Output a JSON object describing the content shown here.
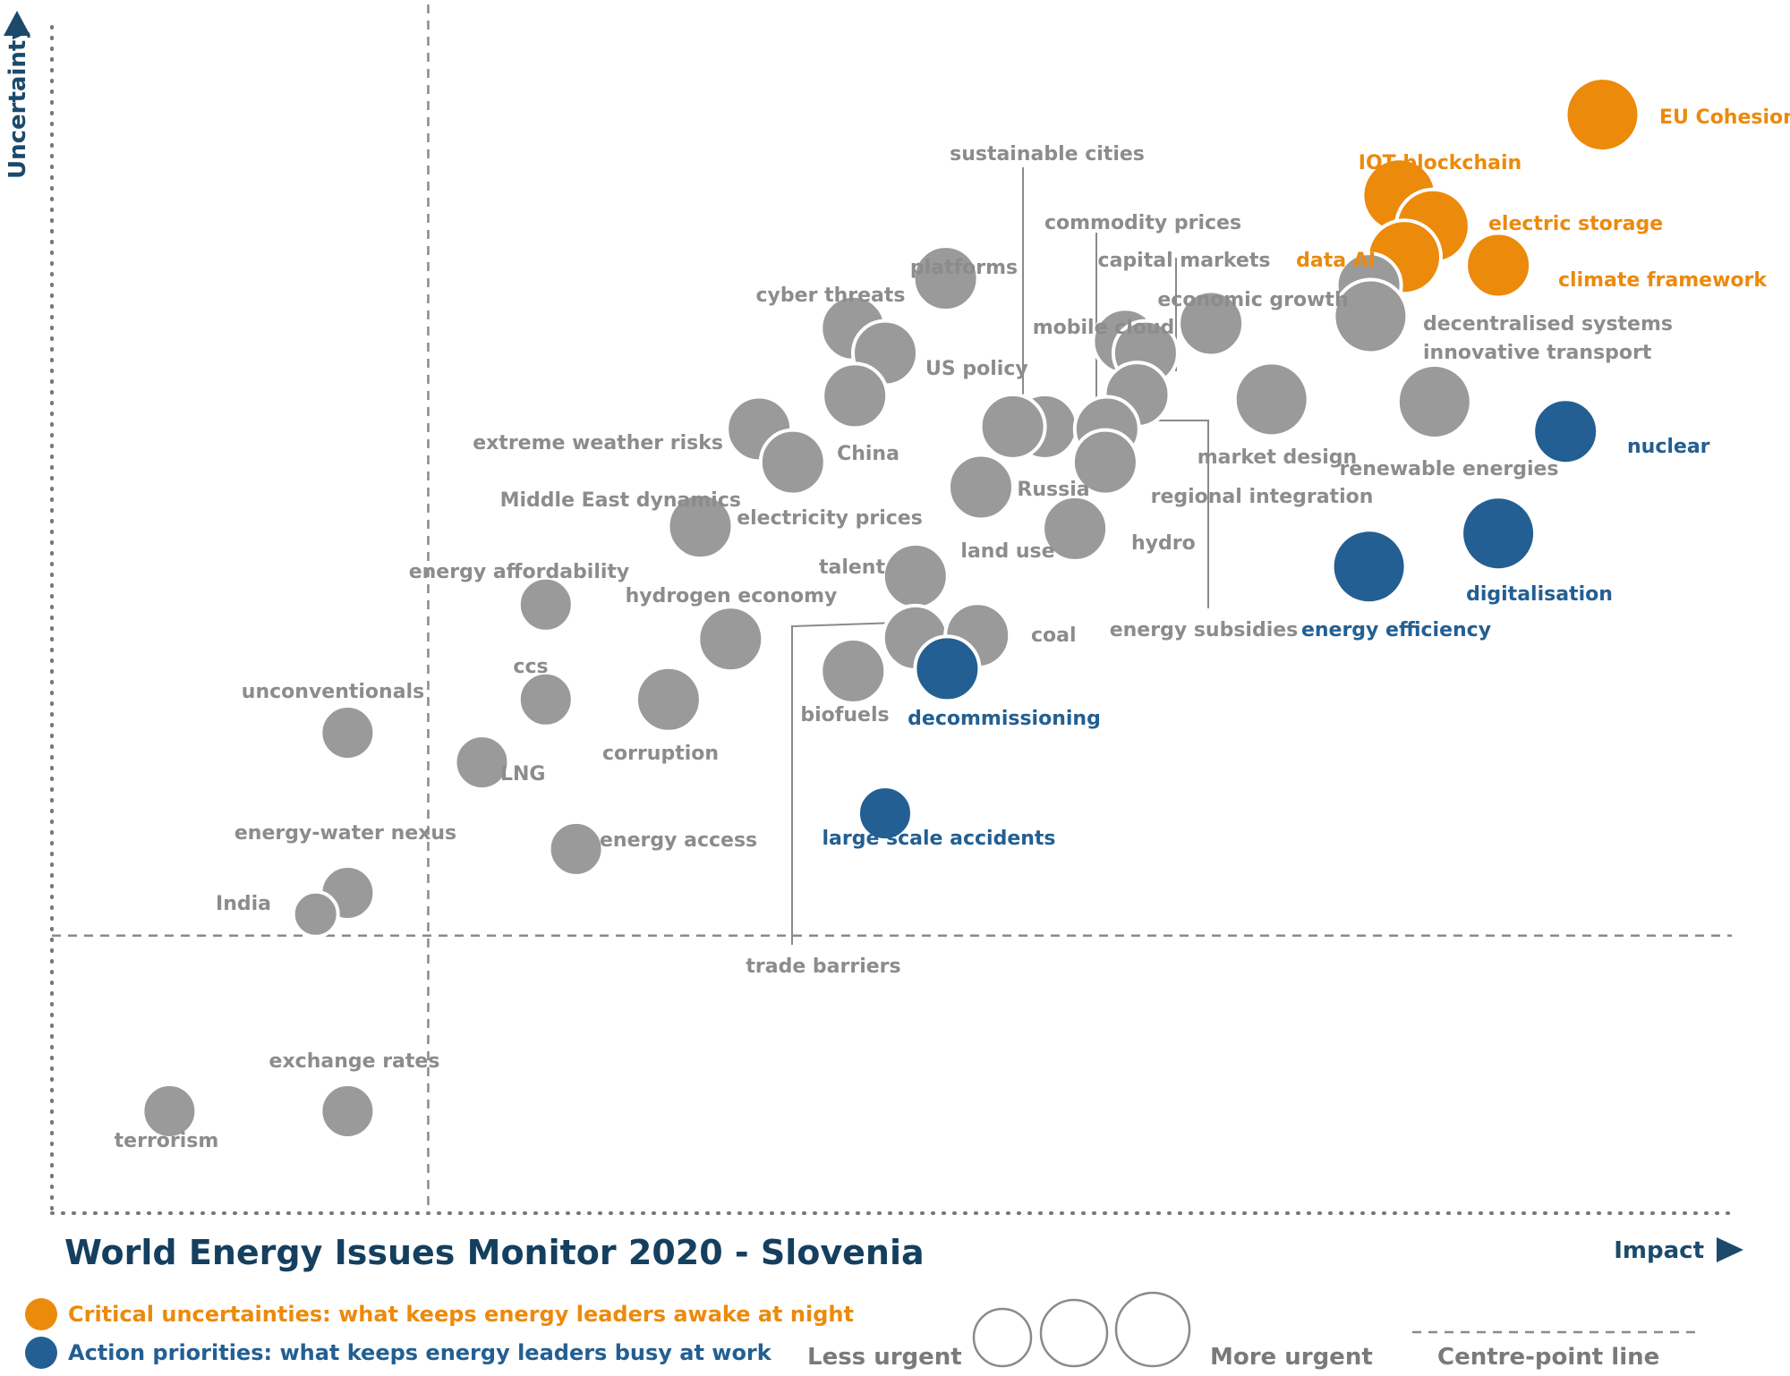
{
  "chart_data": {
    "type": "scatter",
    "title": "World Energy Issues Monitor 2020 - Slovenia",
    "xlabel": "Impact",
    "ylabel": "Uncertainty",
    "xlim": [
      0,
      100
    ],
    "ylim": [
      0,
      100
    ],
    "centre_point": {
      "x": 22.4,
      "y": 23.4
    },
    "colors": {
      "critical": "#ec8a0c",
      "action": "#235f92",
      "other": "#9a9a9a"
    },
    "points": [
      {
        "name": "EU Cohesion",
        "x": 92.3,
        "y": 92.6,
        "category": "critical",
        "urgency": 5
      },
      {
        "name": "IOT blockchain",
        "x": 80.2,
        "y": 85.8,
        "category": "critical",
        "urgency": 5
      },
      {
        "name": "electric storage",
        "x": 82.2,
        "y": 83.2,
        "category": "critical",
        "urgency": 5
      },
      {
        "name": "data AI",
        "x": 80.5,
        "y": 80.6,
        "category": "critical",
        "urgency": 5
      },
      {
        "name": "climate framework",
        "x": 86.1,
        "y": 79.9,
        "category": "critical",
        "urgency": 4
      },
      {
        "name": "decentralised systems",
        "x": 78.4,
        "y": 78.2,
        "category": "other",
        "urgency": 4
      },
      {
        "name": "innovative transport",
        "x": 78.5,
        "y": 75.6,
        "category": "other",
        "urgency": 5
      },
      {
        "name": "renewable energies",
        "x": 82.3,
        "y": 68.4,
        "category": "other",
        "urgency": 5
      },
      {
        "name": "nuclear",
        "x": 90.1,
        "y": 65.9,
        "category": "action",
        "urgency": 4
      },
      {
        "name": "digitalisation",
        "x": 86.1,
        "y": 57.3,
        "category": "action",
        "urgency": 5
      },
      {
        "name": "energy efficiency",
        "x": 78.4,
        "y": 54.5,
        "category": "action",
        "urgency": 5
      },
      {
        "name": "economic growth",
        "x": 69.0,
        "y": 75.0,
        "category": "other",
        "urgency": 4
      },
      {
        "name": "market design",
        "x": 72.6,
        "y": 68.6,
        "category": "other",
        "urgency": 5
      },
      {
        "name": "mobile cloud",
        "x": 63.9,
        "y": 73.5,
        "category": "other",
        "urgency": 4
      },
      {
        "name": "capital markets",
        "x": 65.1,
        "y": 72.5,
        "category": "other",
        "urgency": 4
      },
      {
        "name": "commodity prices",
        "x": 64.6,
        "y": 69.0,
        "category": "other",
        "urgency": 4
      },
      {
        "name": "sustainable cities",
        "x": 59.1,
        "y": 66.3,
        "category": "other",
        "urgency": 4
      },
      {
        "name": "Russia",
        "x": 57.2,
        "y": 66.3,
        "category": "other",
        "urgency": 4
      },
      {
        "name": "energy subsidies",
        "x": 62.8,
        "y": 66.1,
        "category": "other",
        "urgency": 4
      },
      {
        "name": "regional integration",
        "x": 62.7,
        "y": 63.3,
        "category": "other",
        "urgency": 4
      },
      {
        "name": "hydro",
        "x": 60.9,
        "y": 57.7,
        "category": "other",
        "urgency": 4
      },
      {
        "name": "land use",
        "x": 55.3,
        "y": 61.2,
        "category": "other",
        "urgency": 4
      },
      {
        "name": "platforms",
        "x": 53.2,
        "y": 78.8,
        "category": "other",
        "urgency": 4
      },
      {
        "name": "cyber threats",
        "x": 47.7,
        "y": 74.6,
        "category": "other",
        "urgency": 4
      },
      {
        "name": "US policy",
        "x": 49.6,
        "y": 72.5,
        "category": "other",
        "urgency": 4
      },
      {
        "name": "China",
        "x": 47.8,
        "y": 68.9,
        "category": "other",
        "urgency": 4
      },
      {
        "name": "extreme weather risks",
        "x": 42.1,
        "y": 66.1,
        "category": "other",
        "urgency": 4
      },
      {
        "name": "electricity prices",
        "x": 44.1,
        "y": 63.3,
        "category": "other",
        "urgency": 4
      },
      {
        "name": "Middle East dynamics",
        "x": 38.6,
        "y": 57.9,
        "category": "other",
        "urgency": 4
      },
      {
        "name": "talent",
        "x": 51.4,
        "y": 53.7,
        "category": "other",
        "urgency": 4
      },
      {
        "name": "trade barriers",
        "x": 51.4,
        "y": 48.5,
        "category": "other",
        "urgency": 4
      },
      {
        "name": "coal",
        "x": 55.1,
        "y": 48.7,
        "category": "other",
        "urgency": 4
      },
      {
        "name": "decommissioning",
        "x": 53.3,
        "y": 45.9,
        "category": "action",
        "urgency": 4
      },
      {
        "name": "biofuels",
        "x": 47.7,
        "y": 45.7,
        "category": "other",
        "urgency": 4
      },
      {
        "name": "hydrogen economy",
        "x": 40.4,
        "y": 48.4,
        "category": "other",
        "urgency": 4
      },
      {
        "name": "corruption",
        "x": 36.7,
        "y": 43.3,
        "category": "other",
        "urgency": 4
      },
      {
        "name": "energy affordability",
        "x": 29.4,
        "y": 51.3,
        "category": "other",
        "urgency": 3
      },
      {
        "name": "ccs",
        "x": 29.4,
        "y": 43.3,
        "category": "other",
        "urgency": 3
      },
      {
        "name": "LNG",
        "x": 25.6,
        "y": 38.0,
        "category": "other",
        "urgency": 3
      },
      {
        "name": "energy access",
        "x": 31.2,
        "y": 30.7,
        "category": "other",
        "urgency": 3
      },
      {
        "name": "large scale accidents",
        "x": 49.6,
        "y": 33.7,
        "category": "action",
        "urgency": 3
      },
      {
        "name": "unconventionals",
        "x": 17.6,
        "y": 40.5,
        "category": "other",
        "urgency": 3
      },
      {
        "name": "energy-water nexus",
        "x": 17.6,
        "y": 27.0,
        "category": "other",
        "urgency": 3
      },
      {
        "name": "India",
        "x": 15.7,
        "y": 25.2,
        "category": "other",
        "urgency": 2
      },
      {
        "name": "exchange rates",
        "x": 17.6,
        "y": 8.6,
        "category": "other",
        "urgency": 3
      },
      {
        "name": "terrorism",
        "x": 7.0,
        "y": 8.6,
        "category": "other",
        "urgency": 3
      }
    ]
  },
  "legend": {
    "critical": "Critical uncertainties: what keeps energy leaders awake at night",
    "action": "Action priorities: what keeps energy leaders busy at work",
    "less_urgent": "Less urgent",
    "more_urgent": "More urgent",
    "centre_line": "Centre-point  line"
  }
}
